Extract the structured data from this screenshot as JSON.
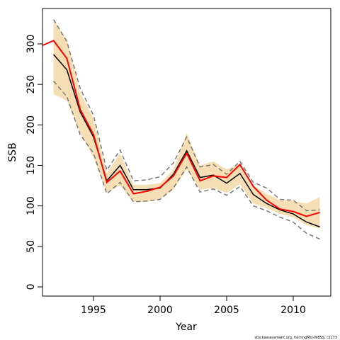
{
  "chart_data": {
    "type": "line",
    "xlabel": "Year",
    "ylabel": "SSB",
    "footnote": "stockassessment.org, herringMix-WBSS, r2173",
    "x": [
      1991,
      1992,
      1993,
      1994,
      1995,
      1996,
      1997,
      1998,
      1999,
      2000,
      2001,
      2002,
      2003,
      2004,
      2005,
      2006,
      2007,
      2008,
      2009,
      2010,
      2011,
      2012
    ],
    "band": {
      "color": "#f5deb3",
      "upper": [
        null,
        329,
        305,
        240,
        208,
        140,
        165,
        126,
        126,
        128,
        145,
        190,
        150,
        155,
        145,
        152,
        125,
        115,
        107,
        106,
        103,
        111
      ],
      "lower": [
        null,
        238,
        230,
        190,
        160,
        117,
        125,
        105,
        105,
        108,
        120,
        145,
        120,
        122,
        116,
        127,
        103,
        97,
        90,
        86,
        76,
        72
      ]
    },
    "series": [
      {
        "color": "#777777",
        "dash": true,
        "values": [
          null,
          330,
          303,
          245,
          212,
          144,
          169,
          131,
          132,
          136,
          153,
          185,
          148,
          151,
          139,
          155,
          129,
          122,
          108,
          107,
          94,
          95
        ]
      },
      {
        "color": "#777777",
        "dash": true,
        "values": [
          null,
          254,
          235,
          188,
          165,
          115,
          129,
          105,
          106,
          108,
          122,
          148,
          117,
          121,
          113,
          124,
          100,
          94,
          86,
          80,
          66,
          59
        ]
      },
      {
        "color": "#000000",
        "values": [
          null,
          287,
          268,
          216,
          185,
          131,
          150,
          120,
          120,
          122,
          139,
          168,
          135,
          138,
          128,
          140,
          114,
          103,
          95,
          90,
          80,
          74
        ]
      },
      {
        "color": "#ff0000",
        "values": [
          297,
          304,
          282,
          219,
          188,
          129,
          143,
          115,
          118,
          123,
          137,
          165,
          131,
          137,
          135,
          151,
          124,
          107,
          96,
          93,
          87,
          92
        ]
      }
    ],
    "xlim": [
      1991.17,
      2012.82
    ],
    "ylim": [
      -11.4,
      343.7
    ],
    "xticks": [
      1995,
      2000,
      2005,
      2010
    ],
    "yticks": [
      0,
      50,
      100,
      150,
      200,
      250,
      300
    ]
  }
}
